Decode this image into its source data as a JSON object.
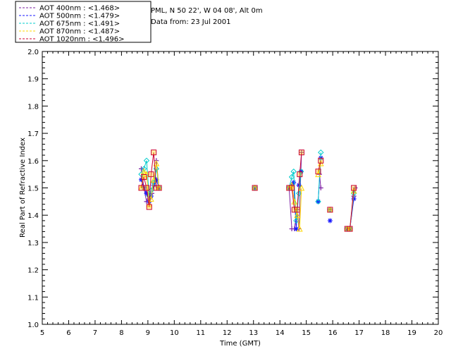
{
  "header": {
    "site": "PML, N 50 22', W 04 08', Alt 0m",
    "date": "Data from: 23 Jul 2001"
  },
  "chart_data": {
    "type": "line",
    "xlabel": "Time (GMT)",
    "ylabel": "Real Part of Refractive Index",
    "xlim": [
      5,
      20
    ],
    "ylim": [
      1.0,
      2.0
    ],
    "xticks": [
      "5",
      "6",
      "7",
      "8",
      "9",
      "10",
      "11",
      "12",
      "13",
      "14",
      "15",
      "16",
      "17",
      "18",
      "19",
      "20"
    ],
    "yticks": [
      "1.0",
      "1.1",
      "1.2",
      "1.3",
      "1.4",
      "1.5",
      "1.6",
      "1.7",
      "1.8",
      "1.9",
      "2.0"
    ],
    "legend_position": "top-left",
    "series": [
      {
        "name": "AOT  400nm : <1.468>",
        "color": "#7B1FA2",
        "marker": "plus",
        "segments": [
          [
            [
              8.75,
              1.57
            ],
            [
              8.85,
              1.5
            ],
            [
              8.95,
              1.45
            ],
            [
              9.05,
              1.46
            ],
            [
              9.15,
              1.48
            ],
            [
              9.25,
              1.52
            ],
            [
              9.32,
              1.6
            ],
            [
              9.42,
              1.5
            ]
          ],
          [
            [
              13.05,
              1.5
            ]
          ],
          [
            [
              14.35,
              1.5
            ],
            [
              14.45,
              1.35
            ],
            [
              14.55,
              1.35
            ],
            [
              14.65,
              1.42
            ],
            [
              14.72,
              1.35
            ],
            [
              14.82,
              1.63
            ]
          ],
          [
            [
              15.5,
              1.55
            ],
            [
              15.55,
              1.5
            ]
          ],
          [
            [
              15.9,
              1.42
            ]
          ],
          [
            [
              16.55,
              1.35
            ],
            [
              16.65,
              1.35
            ],
            [
              16.8,
              1.47
            ],
            [
              16.85,
              1.5
            ]
          ]
        ]
      },
      {
        "name": "AOT  500nm : <1.479>",
        "color": "#1A1AFF",
        "marker": "star",
        "segments": [
          [
            [
              8.75,
              1.53
            ],
            [
              8.85,
              1.5
            ],
            [
              8.95,
              1.48
            ],
            [
              9.05,
              1.45
            ],
            [
              9.12,
              1.47
            ],
            [
              9.22,
              1.51
            ],
            [
              9.32,
              1.53
            ],
            [
              9.42,
              1.5
            ]
          ],
          [
            [
              13.05,
              1.5
            ]
          ],
          [
            [
              14.35,
              1.5
            ],
            [
              14.45,
              1.51
            ],
            [
              14.52,
              1.52
            ],
            [
              14.62,
              1.35
            ],
            [
              14.72,
              1.51
            ],
            [
              14.8,
              1.56
            ]
          ],
          [
            [
              15.45,
              1.45
            ],
            [
              15.55,
              1.61
            ]
          ],
          [
            [
              15.9,
              1.38
            ]
          ],
          [
            [
              16.55,
              1.35
            ],
            [
              16.65,
              1.35
            ],
            [
              16.8,
              1.46
            ]
          ]
        ]
      },
      {
        "name": "AOT  675nm : <1.491>",
        "color": "#00CCCC",
        "marker": "diamond",
        "segments": [
          [
            [
              8.75,
              1.55
            ],
            [
              8.85,
              1.57
            ],
            [
              8.95,
              1.6
            ],
            [
              9.05,
              1.47
            ],
            [
              9.12,
              1.49
            ],
            [
              9.22,
              1.52
            ],
            [
              9.32,
              1.57
            ],
            [
              9.42,
              1.5
            ]
          ],
          [
            [
              13.05,
              1.5
            ]
          ],
          [
            [
              14.35,
              1.5
            ],
            [
              14.45,
              1.54
            ],
            [
              14.52,
              1.56
            ],
            [
              14.62,
              1.38
            ],
            [
              14.72,
              1.48
            ],
            [
              14.8,
              1.56
            ]
          ],
          [
            [
              15.45,
              1.45
            ],
            [
              15.55,
              1.63
            ]
          ],
          [
            [
              15.9,
              1.42
            ]
          ],
          [
            [
              16.55,
              1.35
            ],
            [
              16.65,
              1.35
            ],
            [
              16.8,
              1.48
            ]
          ]
        ]
      },
      {
        "name": "AOT  870nm : <1.487>",
        "color": "#FFD700",
        "marker": "triangle",
        "segments": [
          [
            [
              8.75,
              1.5
            ],
            [
              8.85,
              1.56
            ],
            [
              8.95,
              1.55
            ],
            [
              9.05,
              1.44
            ],
            [
              9.12,
              1.46
            ],
            [
              9.22,
              1.53
            ],
            [
              9.32,
              1.59
            ],
            [
              9.42,
              1.5
            ]
          ],
          [
            [
              13.05,
              1.5
            ]
          ],
          [
            [
              14.35,
              1.5
            ],
            [
              14.45,
              1.51
            ],
            [
              14.55,
              1.45
            ],
            [
              14.65,
              1.4
            ],
            [
              14.75,
              1.35
            ],
            [
              14.82,
              1.5
            ]
          ],
          [
            [
              15.45,
              1.55
            ],
            [
              15.55,
              1.59
            ]
          ],
          [
            [
              15.9,
              1.42
            ]
          ],
          [
            [
              16.55,
              1.35
            ],
            [
              16.65,
              1.35
            ],
            [
              16.8,
              1.49
            ]
          ]
        ]
      },
      {
        "name": "AOT 1020nm : <1.496>",
        "color": "#CC0033",
        "marker": "square",
        "segments": [
          [
            [
              8.75,
              1.5
            ],
            [
              8.85,
              1.54
            ],
            [
              8.95,
              1.5
            ],
            [
              9.05,
              1.43
            ],
            [
              9.12,
              1.55
            ],
            [
              9.22,
              1.63
            ],
            [
              9.32,
              1.5
            ],
            [
              9.42,
              1.5
            ]
          ],
          [
            [
              13.05,
              1.5
            ]
          ],
          [
            [
              14.35,
              1.5
            ],
            [
              14.45,
              1.5
            ],
            [
              14.55,
              1.42
            ],
            [
              14.65,
              1.42
            ],
            [
              14.75,
              1.55
            ],
            [
              14.82,
              1.63
            ]
          ],
          [
            [
              15.45,
              1.56
            ],
            [
              15.55,
              1.6
            ]
          ],
          [
            [
              15.9,
              1.42
            ]
          ],
          [
            [
              16.55,
              1.35
            ],
            [
              16.65,
              1.35
            ],
            [
              16.8,
              1.5
            ]
          ]
        ]
      }
    ]
  }
}
